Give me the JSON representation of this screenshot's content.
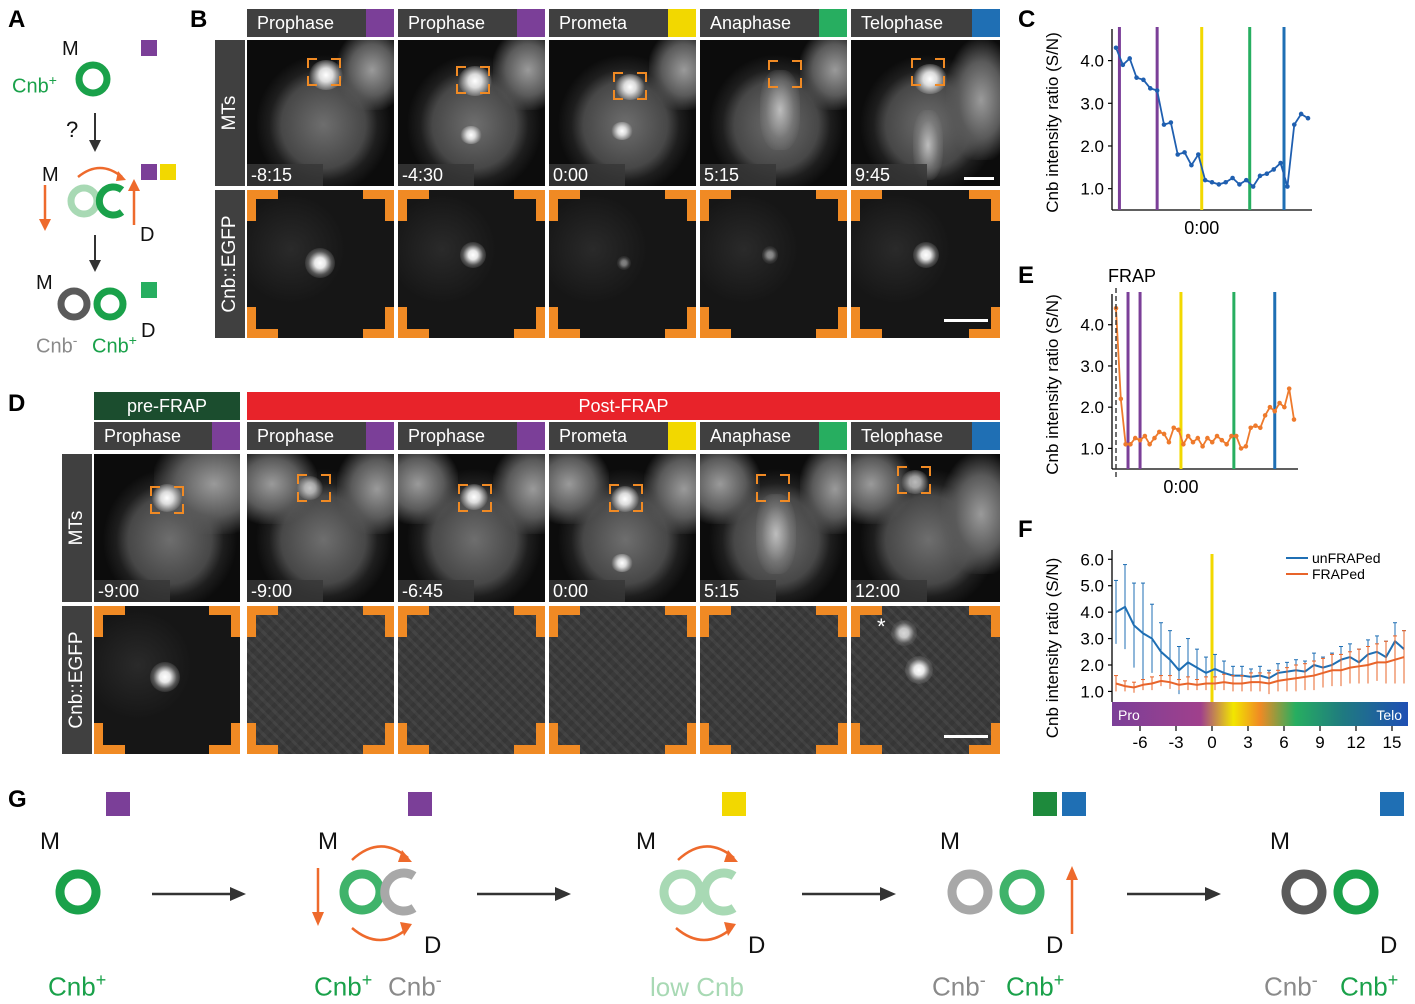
{
  "panels": {
    "A": "A",
    "B": "B",
    "C": "C",
    "D": "D",
    "E": "E",
    "F": "F",
    "G": "G"
  },
  "colors": {
    "prophase": "#7b3f98",
    "prometa": "#f2d800",
    "anaphase": "#27ae60",
    "anaphase_dark": "#1e8a3c",
    "telophase": "#1f6fb4",
    "green": "#1aa14a",
    "orange": "#ee6a2c",
    "lightgreen": "#a8d9b4",
    "gray": "#9b9b9b",
    "darkgray": "#5a5a5a",
    "prefrap": "#1b4d2e",
    "postfrap": "#e8232a"
  },
  "panelA": {
    "M1": "M",
    "cnbplus": "Cnb",
    "sup_plus": "+",
    "question": "?",
    "M2": "M",
    "D2": "D",
    "M3": "M",
    "cnbminus": "Cnb",
    "sup_minus": "-",
    "cnbplus2": "Cnb",
    "sup_plus2": "+",
    "D3": "D"
  },
  "panelB": {
    "headers": [
      "Prophase",
      "Prophase",
      "Prometa",
      "Anaphase",
      "Telophase"
    ],
    "times": [
      "-8:15",
      "-4:30",
      "0:00",
      "5:15",
      "9:45"
    ],
    "row1": "MTs",
    "row2": "Cnb::EGFP"
  },
  "panelD": {
    "prefrap": "pre-FRAP",
    "postfrap": "Post-FRAP",
    "headers": [
      "Prophase",
      "Prophase",
      "Prophase",
      "Prometa",
      "Anaphase",
      "Telophase"
    ],
    "times": [
      "-9:00",
      "-9:00",
      "-6:45",
      "0:00",
      "5:15",
      "12:00"
    ],
    "row1": "MTs",
    "row2": "Cnb::EGFP",
    "asterisk": "*"
  },
  "panelG": {
    "M": "M",
    "D": "D",
    "cnb": "Cnb",
    "plus": "+",
    "minus": "-",
    "low": "low Cnb"
  },
  "chart_data": [
    {
      "id": "C",
      "type": "line",
      "ylabel": "Cnb intensity ratio (S/N)",
      "yticks": [
        "1.0",
        "2.0",
        "3.0",
        "4.0"
      ],
      "ylim": [
        0.5,
        4.6
      ],
      "xtick": "0:00",
      "series": [
        {
          "values": [
            4.3,
            3.9,
            4.05,
            3.6,
            3.55,
            3.35,
            3.3,
            2.5,
            2.55,
            1.8,
            1.85,
            1.55,
            1.8,
            1.2,
            1.15,
            1.1,
            1.15,
            1.25,
            1.1,
            1.2,
            1.05,
            1.3,
            1.35,
            1.45,
            1.6,
            1.05,
            2.5,
            2.75,
            2.65
          ]
        }
      ],
      "markers": [
        {
          "x": 0.5,
          "color": "prophase"
        },
        {
          "x": 6,
          "color": "prophase"
        },
        {
          "x": 12.5,
          "color": "prometa"
        },
        {
          "x": 19.5,
          "color": "anaphase"
        },
        {
          "x": 24.5,
          "color": "telophase"
        }
      ]
    },
    {
      "id": "E",
      "type": "line",
      "ylabel": "Cnb intensity ratio (S/N)",
      "yticks": [
        "1.0",
        "2.0",
        "3.0",
        "4.0"
      ],
      "ylim": [
        0.5,
        4.6
      ],
      "xtick": "0:00",
      "annotation": "FRAP",
      "series": [
        {
          "values": [
            4.4,
            2.2,
            1.1,
            1.1,
            1.25,
            1.2,
            1.3,
            1.1,
            1.25,
            1.4,
            1.35,
            1.15,
            1.5,
            1.45,
            1.1,
            1.3,
            1.15,
            1.25,
            1.05,
            1.25,
            1.15,
            1.3,
            1.2,
            1.1,
            1.3,
            1.3,
            1.0,
            1.05,
            1.5,
            1.55,
            1.5,
            1.8,
            2.0,
            1.9,
            2.1,
            2.0,
            2.45,
            1.7
          ]
        }
      ],
      "markers": [
        {
          "x": 2.5,
          "color": "prophase"
        },
        {
          "x": 5,
          "color": "prophase"
        },
        {
          "x": 13.5,
          "color": "prometa"
        },
        {
          "x": 24.5,
          "color": "anaphase"
        },
        {
          "x": 33,
          "color": "telophase"
        }
      ]
    },
    {
      "id": "F",
      "type": "line",
      "ylabel": "Cnb intensity ratio (S/N)",
      "yticks": [
        "1.0",
        "2.0",
        "3.0",
        "4.0",
        "5.0",
        "6.0"
      ],
      "ylim": [
        0.6,
        6.2
      ],
      "xticks": [
        "-6",
        "-3",
        "0",
        "3",
        "6",
        "9",
        "12",
        "15"
      ],
      "xlim": [
        -8,
        16
      ],
      "gradient_labels": [
        "Pro",
        "Telo"
      ],
      "series": [
        {
          "name": "unFRAPed",
          "color": "telophase",
          "x": [
            -8,
            -7.25,
            -6.5,
            -5.75,
            -5,
            -4.25,
            -3.5,
            -2.75,
            -2,
            -1.25,
            -0.5,
            0.25,
            1,
            1.75,
            2.5,
            3.25,
            4,
            4.75,
            5.5,
            6.25,
            7,
            7.75,
            8.5,
            9.25,
            10,
            10.75,
            11.5,
            12.25,
            13,
            13.75,
            14.5,
            15.25,
            16
          ],
          "values": [
            4.0,
            4.2,
            3.5,
            3.2,
            3.0,
            2.5,
            2.2,
            1.8,
            2.1,
            1.9,
            1.7,
            1.85,
            1.7,
            1.6,
            1.6,
            1.55,
            1.6,
            1.5,
            1.7,
            1.75,
            1.8,
            1.75,
            2.0,
            1.9,
            2.0,
            2.2,
            2.3,
            2.1,
            2.4,
            2.5,
            2.3,
            2.9,
            2.6
          ],
          "err": [
            1.2,
            1.6,
            1.6,
            1.9,
            1.3,
            1.1,
            1.1,
            0.9,
            0.9,
            0.7,
            0.6,
            0.55,
            0.45,
            0.35,
            0.35,
            0.3,
            0.35,
            0.3,
            0.35,
            0.35,
            0.4,
            0.4,
            0.45,
            0.4,
            0.45,
            0.5,
            0.5,
            0.5,
            0.55,
            0.6,
            0.6,
            0.7,
            0.7
          ]
        },
        {
          "name": "FRAPed",
          "color": "orange",
          "x": [
            -8,
            -7.25,
            -6.5,
            -5.75,
            -5,
            -4.25,
            -3.5,
            -2.75,
            -2,
            -1.25,
            -0.5,
            0.25,
            1,
            1.75,
            2.5,
            3.25,
            4,
            4.75,
            5.5,
            6.25,
            7,
            7.75,
            8.5,
            9.25,
            10,
            10.75,
            11.5,
            12.25,
            13,
            13.75,
            14.5,
            15.25,
            16
          ],
          "values": [
            1.3,
            1.2,
            1.15,
            1.25,
            1.3,
            1.4,
            1.35,
            1.25,
            1.3,
            1.25,
            1.3,
            1.3,
            1.35,
            1.3,
            1.3,
            1.35,
            1.35,
            1.3,
            1.4,
            1.45,
            1.5,
            1.55,
            1.6,
            1.7,
            1.8,
            1.8,
            1.9,
            1.95,
            2.0,
            2.1,
            2.1,
            2.2,
            2.3
          ],
          "err": [
            0.3,
            0.2,
            0.2,
            0.2,
            0.25,
            0.2,
            0.25,
            0.2,
            0.25,
            0.2,
            0.25,
            0.25,
            0.3,
            0.3,
            0.3,
            0.35,
            0.35,
            0.4,
            0.4,
            0.45,
            0.5,
            0.5,
            0.55,
            0.55,
            0.6,
            0.6,
            0.6,
            0.65,
            0.7,
            0.7,
            0.8,
            0.9,
            1.0
          ]
        }
      ],
      "vline": {
        "x": 0,
        "color": "prometa"
      }
    }
  ]
}
